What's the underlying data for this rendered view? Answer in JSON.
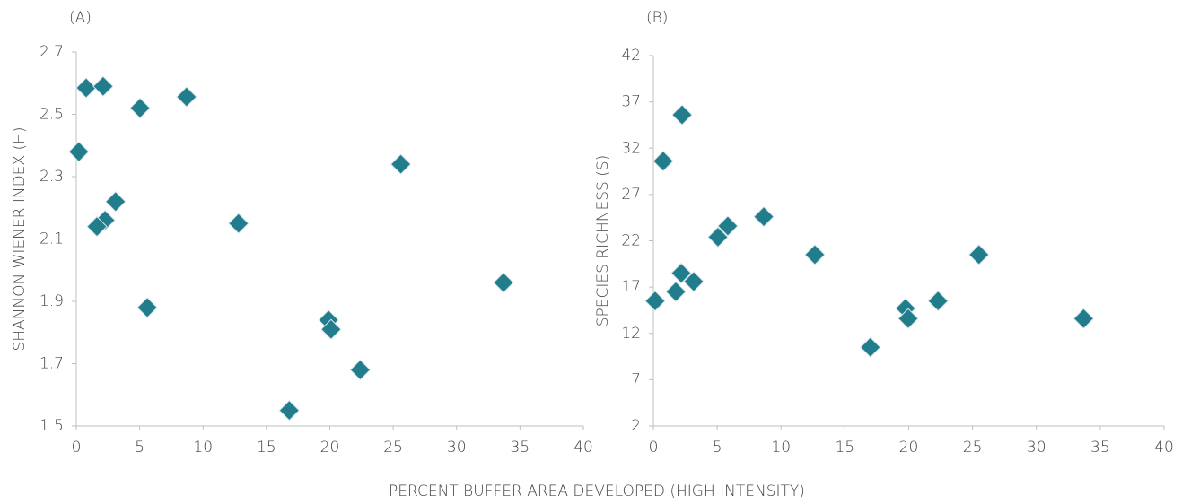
{
  "chart_data": [
    {
      "type": "scatter",
      "title": "(A)",
      "ylabel": "SHANNON WIENER INDEX (H)",
      "xlabel": "PERCENT BUFFER AREA DEVELOPED (HIGH INTENSITY)",
      "color": "#217d8c",
      "xlim": [
        0,
        40
      ],
      "xticks": [
        0,
        5,
        10,
        15,
        20,
        25,
        30,
        35,
        40
      ],
      "ylim": [
        1.5,
        2.7
      ],
      "yticks": [
        1.5,
        1.7,
        1.9,
        2.1,
        2.3,
        2.5,
        2.7
      ],
      "x": [
        0.2,
        0.78,
        2.12,
        5.03,
        8.7,
        3.1,
        2.27,
        1.63,
        12.8,
        25.6,
        5.6,
        33.7,
        19.9,
        20.1,
        22.4,
        16.8
      ],
      "values": [
        2.38,
        2.585,
        2.59,
        2.52,
        2.556,
        2.22,
        2.16,
        2.14,
        2.15,
        2.34,
        1.88,
        1.96,
        1.84,
        1.81,
        1.68,
        1.55
      ]
    },
    {
      "type": "scatter",
      "title": "(B)",
      "ylabel": "SPECIES RICHNESS (S)",
      "color": "#217d8c",
      "xlim": [
        0,
        40
      ],
      "xticks": [
        0,
        5,
        10,
        15,
        20,
        25,
        30,
        35,
        40
      ],
      "ylim": [
        2,
        42
      ],
      "yticks": [
        2,
        7,
        12,
        17,
        22,
        27,
        32,
        37,
        42
      ],
      "x": [
        0.14,
        0.77,
        2.25,
        2.18,
        1.76,
        3.16,
        5.06,
        5.83,
        8.65,
        12.65,
        17.0,
        19.75,
        19.96,
        22.3,
        25.5,
        33.7
      ],
      "values": [
        15.5,
        30.6,
        35.6,
        18.5,
        16.5,
        17.6,
        22.4,
        23.6,
        24.6,
        20.5,
        10.5,
        14.7,
        13.6,
        15.5,
        20.5,
        13.6
      ]
    }
  ]
}
